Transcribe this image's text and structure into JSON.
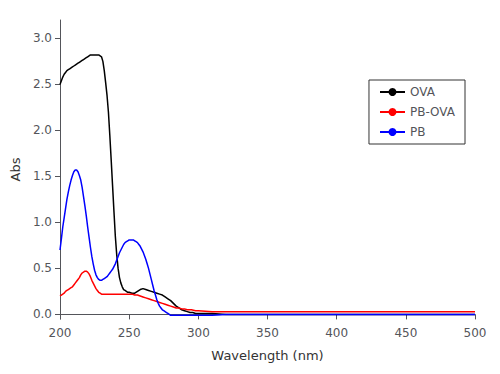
{
  "chart_data": {
    "type": "line",
    "xlabel": "Wavelength (nm)",
    "ylabel": "Abs",
    "xlim": [
      200,
      500
    ],
    "ylim": [
      -0.05,
      3.2
    ],
    "xticks": [
      200,
      250,
      300,
      350,
      400,
      450,
      500
    ],
    "yticks": [
      {
        "value": 0.0,
        "label": "0.0"
      },
      0.5,
      {
        "value": 1.0,
        "label": "1.0"
      },
      1.5,
      {
        "value": 2.0,
        "label": "2.0"
      },
      2.5,
      {
        "value": 3.0,
        "label": "3.0"
      }
    ],
    "grid": false,
    "legend": "upper right",
    "series": [
      {
        "name": "OVA",
        "color": "black",
        "line_style": "solid",
        "marker": "none",
        "x": [
          200,
          201,
          202,
          203,
          204,
          205,
          206,
          207,
          208,
          209,
          210,
          211,
          212,
          213,
          214,
          215,
          216,
          217,
          218,
          219,
          220,
          221,
          222,
          223,
          224,
          225,
          226,
          227,
          228,
          229,
          230,
          231,
          232,
          233,
          234,
          235,
          236,
          237,
          238,
          239,
          240,
          241,
          242,
          243,
          244,
          245,
          246,
          247,
          248,
          249,
          250,
          252,
          254,
          256,
          258,
          260,
          262,
          264,
          266,
          268,
          270,
          272,
          274,
          276,
          278,
          280,
          282,
          284,
          286,
          288,
          290,
          292,
          294,
          296,
          298,
          300,
          310,
          320,
          340,
          360,
          400,
          450,
          500
        ],
        "values": [
          2.5,
          2.54,
          2.58,
          2.61,
          2.63,
          2.65,
          2.66,
          2.67,
          2.68,
          2.69,
          2.7,
          2.71,
          2.72,
          2.73,
          2.74,
          2.75,
          2.76,
          2.77,
          2.78,
          2.79,
          2.8,
          2.81,
          2.82,
          2.82,
          2.82,
          2.82,
          2.82,
          2.82,
          2.82,
          2.81,
          2.8,
          2.75,
          2.65,
          2.52,
          2.38,
          2.2,
          1.95,
          1.68,
          1.4,
          1.12,
          0.85,
          0.65,
          0.5,
          0.4,
          0.34,
          0.3,
          0.27,
          0.26,
          0.25,
          0.24,
          0.24,
          0.23,
          0.23,
          0.25,
          0.27,
          0.28,
          0.27,
          0.26,
          0.25,
          0.24,
          0.23,
          0.22,
          0.21,
          0.19,
          0.17,
          0.15,
          0.12,
          0.09,
          0.07,
          0.05,
          0.04,
          0.03,
          0.02,
          0.02,
          0.01,
          0.01,
          0.01,
          0.0,
          0.0,
          0.0,
          0.0,
          0.0,
          0.0
        ]
      },
      {
        "name": "PB-OVA",
        "color": "red",
        "line_style": "solid",
        "marker": "none",
        "x": [
          200,
          201,
          202,
          203,
          204,
          205,
          206,
          207,
          208,
          209,
          210,
          211,
          212,
          213,
          214,
          215,
          216,
          217,
          218,
          219,
          220,
          221,
          222,
          223,
          224,
          225,
          226,
          227,
          228,
          229,
          230,
          232,
          234,
          236,
          238,
          240,
          242,
          244,
          246,
          248,
          250,
          252,
          254,
          256,
          258,
          260,
          262,
          264,
          266,
          268,
          270,
          272,
          274,
          276,
          278,
          280,
          282,
          284,
          286,
          288,
          290,
          292,
          295,
          298,
          300,
          310,
          320,
          350,
          400,
          450,
          500
        ],
        "values": [
          0.2,
          0.21,
          0.22,
          0.23,
          0.25,
          0.26,
          0.27,
          0.28,
          0.29,
          0.3,
          0.32,
          0.34,
          0.36,
          0.38,
          0.4,
          0.43,
          0.45,
          0.46,
          0.47,
          0.47,
          0.46,
          0.44,
          0.41,
          0.37,
          0.34,
          0.31,
          0.28,
          0.26,
          0.24,
          0.23,
          0.22,
          0.22,
          0.22,
          0.22,
          0.22,
          0.22,
          0.22,
          0.22,
          0.22,
          0.22,
          0.22,
          0.22,
          0.21,
          0.21,
          0.2,
          0.19,
          0.18,
          0.17,
          0.16,
          0.15,
          0.14,
          0.13,
          0.12,
          0.11,
          0.1,
          0.09,
          0.08,
          0.07,
          0.07,
          0.06,
          0.06,
          0.05,
          0.05,
          0.04,
          0.04,
          0.03,
          0.03,
          0.03,
          0.03,
          0.03,
          0.03
        ]
      },
      {
        "name": "PB",
        "color": "blue",
        "line_style": "solid",
        "marker": "none",
        "x": [
          200,
          201,
          202,
          203,
          204,
          205,
          206,
          207,
          208,
          209,
          210,
          211,
          212,
          213,
          214,
          215,
          216,
          217,
          218,
          219,
          220,
          221,
          222,
          223,
          224,
          225,
          226,
          227,
          228,
          229,
          230,
          231,
          232,
          233,
          234,
          235,
          236,
          237,
          238,
          239,
          240,
          241,
          242,
          243,
          244,
          245,
          246,
          247,
          248,
          249,
          250,
          251,
          252,
          253,
          254,
          255,
          256,
          257,
          258,
          259,
          260,
          261,
          262,
          263,
          264,
          265,
          266,
          267,
          268,
          269,
          270,
          271,
          272,
          273,
          274,
          275,
          276,
          277,
          278,
          279,
          280,
          282,
          284,
          286,
          288,
          290,
          292,
          295,
          300,
          310,
          320,
          350,
          400,
          450,
          500
        ],
        "values": [
          0.7,
          0.82,
          0.95,
          1.05,
          1.15,
          1.25,
          1.33,
          1.4,
          1.46,
          1.51,
          1.55,
          1.57,
          1.57,
          1.55,
          1.51,
          1.46,
          1.38,
          1.28,
          1.18,
          1.07,
          0.95,
          0.84,
          0.73,
          0.63,
          0.55,
          0.48,
          0.43,
          0.4,
          0.38,
          0.37,
          0.37,
          0.38,
          0.39,
          0.4,
          0.41,
          0.43,
          0.45,
          0.47,
          0.49,
          0.52,
          0.55,
          0.59,
          0.63,
          0.67,
          0.7,
          0.73,
          0.76,
          0.78,
          0.79,
          0.8,
          0.81,
          0.81,
          0.81,
          0.81,
          0.8,
          0.79,
          0.78,
          0.76,
          0.74,
          0.71,
          0.68,
          0.64,
          0.6,
          0.55,
          0.5,
          0.44,
          0.38,
          0.32,
          0.26,
          0.21,
          0.16,
          0.12,
          0.09,
          0.07,
          0.05,
          0.04,
          0.03,
          0.02,
          0.01,
          0.0,
          -0.01,
          -0.01,
          -0.01,
          -0.01,
          -0.01,
          -0.01,
          -0.01,
          -0.01,
          -0.01,
          -0.01,
          -0.0,
          0.0,
          0.0,
          0.0,
          0.0
        ]
      }
    ]
  }
}
